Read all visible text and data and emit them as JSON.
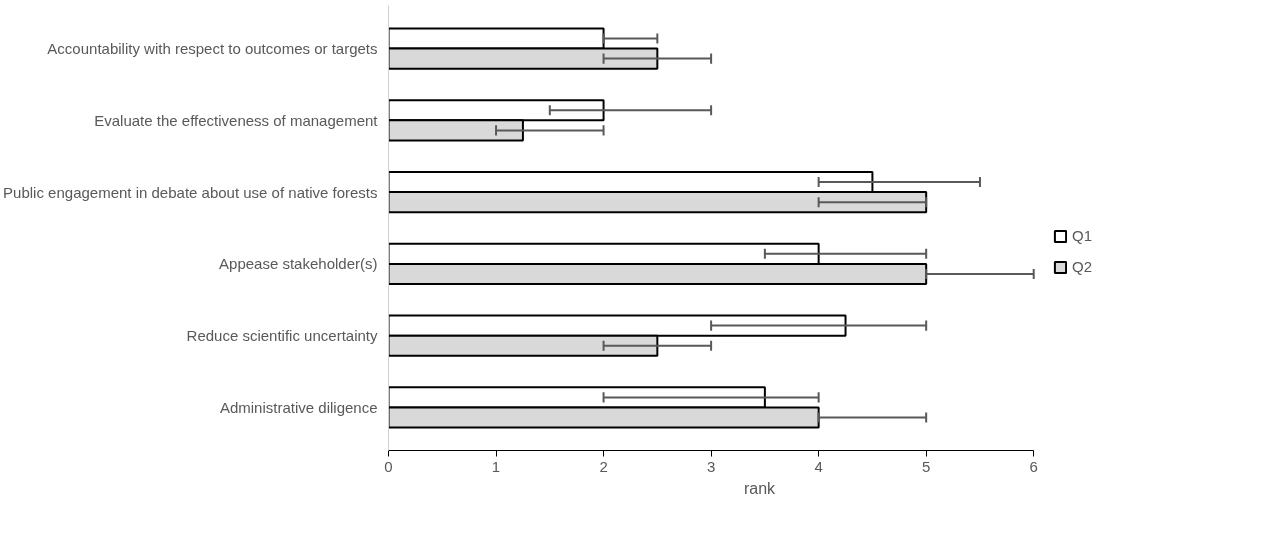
{
  "chart_data": {
    "type": "bar",
    "orientation": "horizontal",
    "xlabel": "rank",
    "categories": [
      "Accountability with respect to outcomes or targets",
      "Evaluate the effectiveness of management",
      "Public engagement in debate about use of native forests",
      "Appease stakeholder(s)",
      "Reduce scientific uncertainty",
      "Administrative diligence"
    ],
    "series": [
      {
        "name": "Q1",
        "color": "#ffffff",
        "values": [
          2,
          2,
          4.5,
          4,
          4.25,
          3.5
        ],
        "errors": [
          [
            2,
            2.5
          ],
          [
            1.5,
            3
          ],
          [
            4,
            5.5
          ],
          [
            3.5,
            5
          ],
          [
            3,
            5
          ],
          [
            2,
            4
          ]
        ]
      },
      {
        "name": "Q2",
        "color": "#d9d9d9",
        "values": [
          2.5,
          1.25,
          5,
          5,
          2.5,
          4
        ],
        "errors": [
          [
            2,
            3
          ],
          [
            1,
            2
          ],
          [
            4,
            5
          ],
          [
            5,
            6
          ],
          [
            2,
            3
          ],
          [
            4,
            5
          ]
        ]
      }
    ],
    "xlim": [
      0,
      6
    ],
    "xticks": [
      0,
      1,
      2,
      3,
      4,
      5,
      6
    ],
    "grid": false,
    "legend": "right"
  }
}
